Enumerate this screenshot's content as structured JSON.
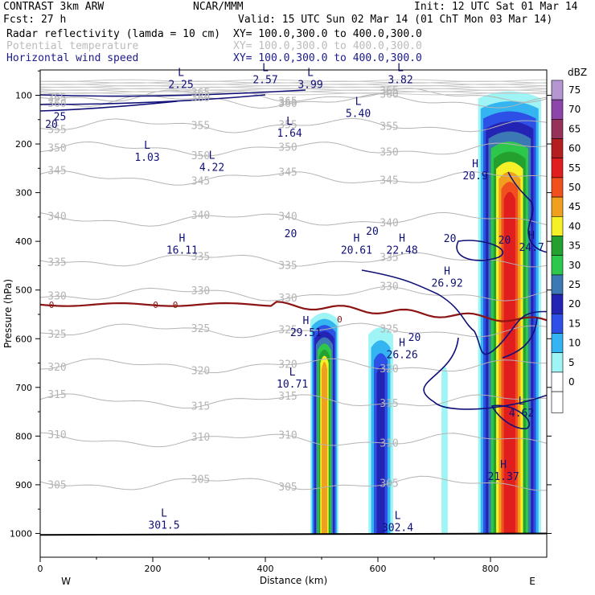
{
  "header": {
    "title": "CONTRAST  3km ARW",
    "center": "NCAR/MMM",
    "fcst": "Fcst:    27 h",
    "init": "Init: 12 UTC Sat 01 Mar 14",
    "valid": "Valid: 15 UTC Sun 02 Mar 14 (01 ChT Mon 03 Mar 14)",
    "fields": [
      {
        "name": "Radar reflectivity (lamda = 10 cm)",
        "xy": "XY= 100.0,300.0 to 400.0,300.0",
        "color": "#000000"
      },
      {
        "name": "Potential temperature",
        "xy": "XY= 100.0,300.0 to 400.0,300.0",
        "color": "#bbbbbb"
      },
      {
        "name": "Horizontal wind speed",
        "xy": "XY= 100.0,300.0 to 400.0,300.0",
        "color": "#1a1a8c"
      }
    ]
  },
  "chart_data": {
    "type": "cross-section",
    "xlabel": "Distance (km)",
    "ylabel": "Pressure (hPa)",
    "xlim": [
      0,
      900
    ],
    "ylim": [
      1050,
      50
    ],
    "x_ticks": [
      0,
      200,
      400,
      600,
      800
    ],
    "y_ticks": [
      100,
      200,
      300,
      400,
      500,
      600,
      700,
      800,
      900,
      1000
    ],
    "x_end_labels": {
      "left": "W",
      "right": "E"
    },
    "colorbar": {
      "unit": "dBZ",
      "levels": [
        0,
        5,
        10,
        15,
        20,
        25,
        30,
        35,
        40,
        45,
        50,
        55,
        60,
        65,
        70,
        75
      ],
      "colors": [
        "#ffffff",
        "#9ff5f5",
        "#34b4f0",
        "#2d50e6",
        "#2323b4",
        "#3c78b4",
        "#2dc84b",
        "#23a02d",
        "#f5f028",
        "#f0a01e",
        "#f0501e",
        "#e11e1e",
        "#b41e1e",
        "#96325a",
        "#8c46aa",
        "#b496d2"
      ]
    },
    "reflectivity_columns": [
      {
        "x0": 480,
        "x1": 530,
        "ptop": 545,
        "peak": 45
      },
      {
        "x0": 583,
        "x1": 627,
        "ptop": 575,
        "peak": 20
      },
      {
        "x0": 713,
        "x1": 724,
        "ptop": 655,
        "peak": 5
      },
      {
        "x0": 778,
        "x1": 890,
        "ptop": 90,
        "peak": 55
      }
    ],
    "theta_contours": [
      {
        "label": "365",
        "p": 100
      },
      {
        "label": "360",
        "p": 112
      },
      {
        "label": "355",
        "p": 162
      },
      {
        "label": "350",
        "p": 210
      },
      {
        "label": "345",
        "p": 270
      },
      {
        "label": "340",
        "p": 355
      },
      {
        "label": "335",
        "p": 438
      },
      {
        "label": "330",
        "p": 508
      },
      {
        "label": "325",
        "p": 583
      },
      {
        "label": "320",
        "p": 655
      },
      {
        "label": "315",
        "p": 728
      },
      {
        "label": "310",
        "p": 808
      },
      {
        "label": "305",
        "p": 897
      }
    ],
    "zero_line_label": "0",
    "speed_contour_labels": [
      "25",
      "20",
      "20",
      "20",
      "20",
      "20",
      "20"
    ],
    "extrema": [
      {
        "type": "L",
        "value": "2.25",
        "x": 250,
        "p": 80
      },
      {
        "type": "L",
        "value": "2.57",
        "x": 400,
        "p": 70
      },
      {
        "type": "L",
        "value": "3.99",
        "x": 480,
        "p": 80
      },
      {
        "type": "L",
        "value": "3.82",
        "x": 640,
        "p": 70
      },
      {
        "type": "L",
        "value": "5.40",
        "x": 565,
        "p": 140
      },
      {
        "type": "L",
        "value": "1.64",
        "x": 443,
        "p": 180
      },
      {
        "type": "L",
        "value": "1.03",
        "x": 190,
        "p": 230
      },
      {
        "type": "L",
        "value": "4.22",
        "x": 305,
        "p": 250
      },
      {
        "type": "L",
        "value": "10.71",
        "x": 448,
        "p": 695
      },
      {
        "type": "L",
        "value": "4.62",
        "x": 855,
        "p": 755
      },
      {
        "type": "L",
        "value": "301.5",
        "x": 220,
        "p": 985
      },
      {
        "type": "L",
        "value": "302.4",
        "x": 635,
        "p": 990
      },
      {
        "type": "H",
        "value": "16.11",
        "x": 252,
        "p": 420
      },
      {
        "type": "H",
        "value": "20.61",
        "x": 562,
        "p": 420
      },
      {
        "type": "H",
        "value": "22.48",
        "x": 643,
        "p": 420
      },
      {
        "type": "H",
        "value": "26.92",
        "x": 723,
        "p": 488
      },
      {
        "type": "H",
        "value": "20.9",
        "x": 773,
        "p": 268
      },
      {
        "type": "H",
        "value": "24.7",
        "x": 873,
        "p": 415
      },
      {
        "type": "H",
        "value": "29.51",
        "x": 472,
        "p": 590
      },
      {
        "type": "H",
        "value": "26.26",
        "x": 643,
        "p": 635
      },
      {
        "type": "H",
        "value": "21.37",
        "x": 823,
        "p": 885
      }
    ]
  }
}
